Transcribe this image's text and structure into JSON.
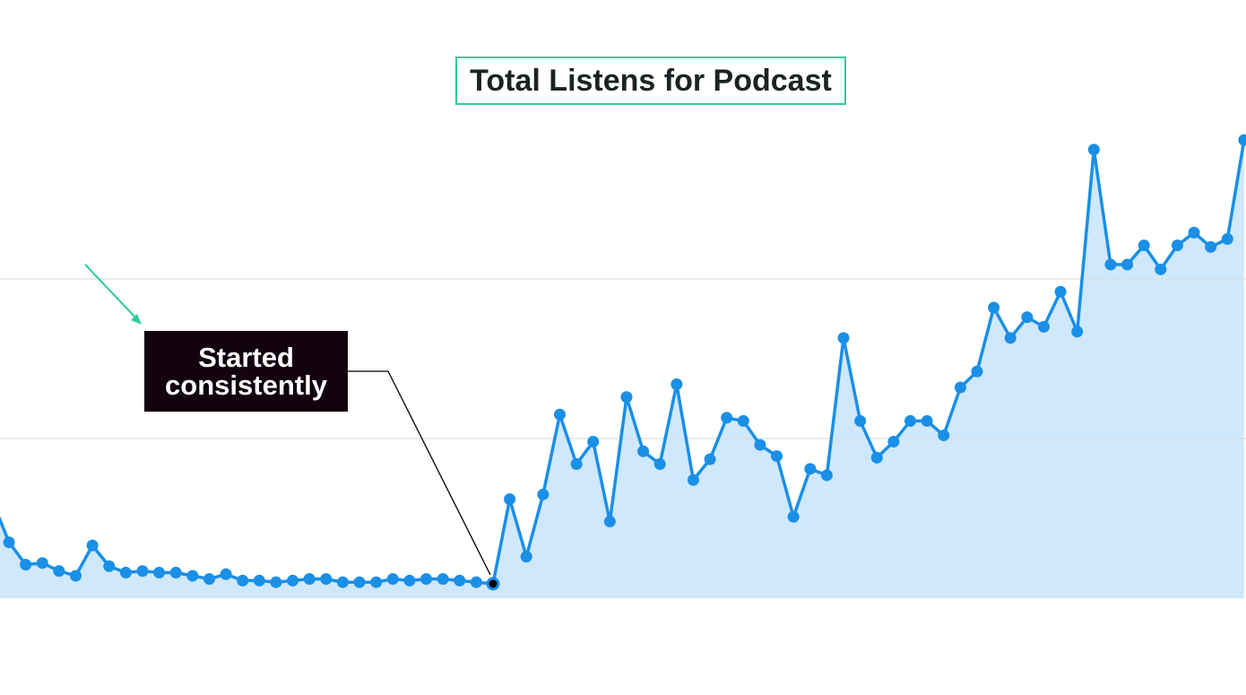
{
  "chart_data": {
    "type": "line",
    "title": "Total Listens for Podcast",
    "values": [
      61,
      35,
      21,
      22,
      17,
      14,
      33,
      20,
      16,
      17,
      16,
      16,
      14,
      12,
      15,
      11,
      11,
      10,
      11,
      12,
      12,
      10,
      10,
      10,
      12,
      11,
      12,
      12,
      11,
      10,
      9,
      62,
      26,
      65,
      115,
      84,
      98,
      48,
      126,
      92,
      84,
      134,
      74,
      87,
      113,
      111,
      96,
      89,
      51,
      81,
      77,
      163,
      111,
      88,
      98,
      111,
      111,
      102,
      132,
      142,
      182,
      163,
      176,
      170,
      192,
      167,
      281,
      209,
      209,
      221,
      206,
      221,
      229,
      220,
      225,
      287
    ],
    "color": "#1a8fe6",
    "fill_color": "#cfe8fb",
    "ylim": [
      0,
      300
    ],
    "yticks": [
      100,
      200
    ],
    "grid": true,
    "annotation": "Started consistently"
  }
}
